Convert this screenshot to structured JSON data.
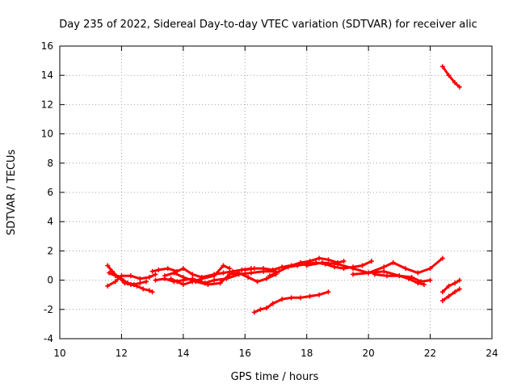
{
  "chart_data": {
    "type": "line",
    "title": "Day 235 of 2022, Sidereal Day-to-day VTEC variation (SDTVAR) for receiver alic",
    "xlabel": "GPS time / hours",
    "ylabel": "SDTVAR / TECUs",
    "xlim": [
      10,
      24
    ],
    "ylim": [
      -4,
      16
    ],
    "xticks": [
      10,
      12,
      14,
      16,
      18,
      20,
      22,
      24
    ],
    "yticks": [
      -4,
      -2,
      0,
      2,
      4,
      6,
      8,
      10,
      12,
      14,
      16
    ],
    "grid": true,
    "color": "#ff0000",
    "series": [
      {
        "name": "arc-1",
        "x": [
          11.55,
          11.7,
          11.9,
          12.1,
          12.3,
          12.5,
          12.7,
          12.9,
          13.0
        ],
        "y": [
          1.0,
          0.6,
          0.2,
          -0.2,
          -0.3,
          -0.4,
          -0.6,
          -0.7,
          -0.8
        ]
      },
      {
        "name": "arc-2",
        "x": [
          11.55,
          11.8,
          12.0,
          12.3,
          12.6,
          12.9,
          13.1
        ],
        "y": [
          -0.4,
          -0.1,
          0.3,
          0.3,
          0.1,
          0.2,
          0.4
        ]
      },
      {
        "name": "arc-3",
        "x": [
          11.6,
          11.8,
          12.0,
          12.2,
          12.4,
          12.6,
          12.8
        ],
        "y": [
          0.5,
          0.3,
          0.1,
          -0.2,
          -0.3,
          -0.2,
          -0.1
        ]
      },
      {
        "name": "arc-4",
        "x": [
          13.0,
          13.2,
          13.5,
          13.8,
          14.0,
          14.3,
          14.6,
          15.0,
          15.3,
          15.6,
          15.9,
          16.2
        ],
        "y": [
          0.6,
          0.7,
          0.8,
          0.6,
          0.8,
          0.4,
          0.2,
          0.4,
          0.5,
          0.6,
          0.7,
          0.8
        ]
      },
      {
        "name": "arc-5",
        "x": [
          13.1,
          13.4,
          13.7,
          14.0,
          14.3,
          14.7,
          15.0,
          15.4,
          15.8,
          16.2,
          16.6,
          17.0
        ],
        "y": [
          0.0,
          0.1,
          -0.1,
          0.0,
          0.1,
          -0.2,
          0.0,
          0.1,
          0.4,
          0.5,
          0.6,
          0.6
        ]
      },
      {
        "name": "arc-6",
        "x": [
          13.4,
          13.7,
          14.0,
          14.4,
          14.8,
          15.2,
          15.5,
          15.8,
          16.1,
          16.4,
          16.7,
          17.0
        ],
        "y": [
          0.3,
          0.5,
          0.2,
          -0.1,
          -0.3,
          -0.2,
          0.4,
          0.5,
          0.2,
          -0.1,
          0.1,
          0.4
        ]
      },
      {
        "name": "arc-7",
        "x": [
          13.6,
          13.8,
          14.0,
          14.3,
          14.6,
          15.0,
          15.3,
          15.5
        ],
        "y": [
          0.1,
          -0.1,
          -0.3,
          -0.1,
          0.1,
          0.3,
          1.0,
          0.8
        ]
      },
      {
        "name": "arc-8",
        "x": [
          16.0,
          16.3,
          16.6,
          16.9,
          17.2,
          17.5,
          17.8,
          18.1,
          18.4,
          18.7,
          19.0,
          19.2
        ],
        "y": [
          0.7,
          0.8,
          0.8,
          0.7,
          0.9,
          1.0,
          1.2,
          1.3,
          1.5,
          1.4,
          1.2,
          1.3
        ]
      },
      {
        "name": "arc-9",
        "x": [
          16.8,
          17.1,
          17.4,
          17.7,
          18.0,
          18.3,
          18.6,
          18.9,
          19.2,
          19.5,
          19.8,
          20.1
        ],
        "y": [
          0.3,
          0.6,
          0.9,
          1.0,
          1.1,
          1.2,
          1.1,
          0.9,
          0.8,
          0.9,
          1.0,
          1.3
        ]
      },
      {
        "name": "arc-10",
        "x": [
          18.0,
          18.5,
          19.0,
          19.5,
          20.0,
          20.5,
          21.0,
          21.4,
          21.7,
          22.0
        ],
        "y": [
          1.0,
          1.2,
          1.1,
          0.8,
          0.5,
          0.6,
          0.3,
          0.2,
          -0.1,
          0.0
        ]
      },
      {
        "name": "arc-11",
        "x": [
          19.5,
          20.0,
          20.5,
          20.8,
          21.2,
          21.6,
          22.0,
          22.4
        ],
        "y": [
          0.4,
          0.5,
          0.9,
          1.2,
          0.8,
          0.5,
          0.8,
          1.5
        ]
      },
      {
        "name": "arc-12",
        "x": [
          20.2,
          20.6,
          21.0,
          21.3,
          21.6,
          21.8
        ],
        "y": [
          0.4,
          0.3,
          0.3,
          0.1,
          -0.2,
          -0.3
        ]
      },
      {
        "name": "arc-13",
        "x": [
          16.3,
          16.5,
          16.7,
          16.9,
          17.2,
          17.5,
          17.8,
          18.1,
          18.4,
          18.7
        ],
        "y": [
          -2.2,
          -2.0,
          -1.9,
          -1.6,
          -1.3,
          -1.2,
          -1.2,
          -1.1,
          -1.0,
          -0.8
        ]
      },
      {
        "name": "arc-14",
        "x": [
          22.4,
          22.6,
          22.8,
          22.95
        ],
        "y": [
          14.6,
          14.0,
          13.5,
          13.2
        ]
      },
      {
        "name": "arc-15",
        "x": [
          22.4,
          22.6,
          22.8,
          22.95
        ],
        "y": [
          -0.8,
          -0.4,
          -0.2,
          0.0
        ]
      },
      {
        "name": "arc-16",
        "x": [
          22.4,
          22.6,
          22.8,
          22.95
        ],
        "y": [
          -1.4,
          -1.1,
          -0.8,
          -0.6
        ]
      }
    ]
  }
}
